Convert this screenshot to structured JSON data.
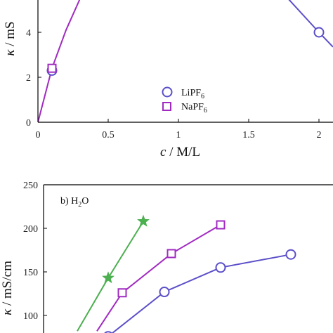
{
  "colors": {
    "LiPF6": "#5b4fc9",
    "NaPF6": "#a12bc1",
    "star": "#4caf50",
    "axis": "#000000"
  },
  "chart_data": [
    {
      "type": "line",
      "panel": "top",
      "xlabel_var": "c",
      "xlabel_unit": " / M/L",
      "ylabel_var": "κ",
      "ylabel_unit": " / mS",
      "xlim": [
        0,
        2.1
      ],
      "ylim": [
        0,
        5.5
      ],
      "xticks": [
        0,
        0.5,
        1,
        1.5,
        2
      ],
      "xtick_labels": [
        "0",
        "0.5",
        "1",
        "1.5",
        "2"
      ],
      "yticks": [
        0,
        2,
        4
      ],
      "ytick_labels": [
        "0",
        "2",
        "4"
      ],
      "legend": [
        {
          "name_main": "LiPF",
          "name_sub": "6",
          "marker": "circle"
        },
        {
          "name_main": "NaPF",
          "name_sub": "6",
          "marker": "square"
        }
      ],
      "series": [
        {
          "name": "LiPF6",
          "marker": "circle",
          "x": [
            0.1,
            2.0
          ],
          "y": [
            2.3,
            4.0
          ],
          "line_x": [
            1.78,
            2.0,
            2.1
          ],
          "line_y": [
            5.5,
            4.0,
            3.35
          ]
        },
        {
          "name": "NaPF6",
          "marker": "square",
          "x": [
            0.1
          ],
          "y": [
            2.4
          ],
          "line_x": [
            0,
            0.1,
            0.2,
            0.3
          ],
          "line_y": [
            0,
            2.4,
            4.1,
            5.5
          ]
        }
      ]
    },
    {
      "type": "line",
      "panel": "bottom",
      "panel_label_main": "b) H",
      "panel_label_sub": "2",
      "panel_label_end": "O",
      "ylabel_var": "κ",
      "ylabel_unit": " / mS/cm",
      "xlim": [
        0,
        2.1
      ],
      "ylim": [
        80,
        250
      ],
      "yticks": [
        100,
        150,
        200,
        250
      ],
      "ytick_labels": [
        "100",
        "150",
        "200",
        "250"
      ],
      "series": [
        {
          "name": "LiPF6",
          "marker": "circle",
          "x": [
            0.5,
            0.9,
            1.3,
            1.8
          ],
          "y": [
            76,
            127,
            155,
            170
          ]
        },
        {
          "name": "NaPF6",
          "marker": "square",
          "x": [
            0.6,
            0.95,
            1.3
          ],
          "y": [
            126,
            171,
            204
          ],
          "line_x": [
            0.42,
            0.6,
            0.95,
            1.3
          ],
          "line_y": [
            82,
            126,
            171,
            204
          ]
        },
        {
          "name": "",
          "marker": "star",
          "x": [
            0.5,
            0.75
          ],
          "y": [
            143,
            208
          ],
          "line_x": [
            0.28,
            0.5,
            0.75
          ],
          "line_y": [
            82,
            143,
            208
          ]
        }
      ]
    }
  ]
}
